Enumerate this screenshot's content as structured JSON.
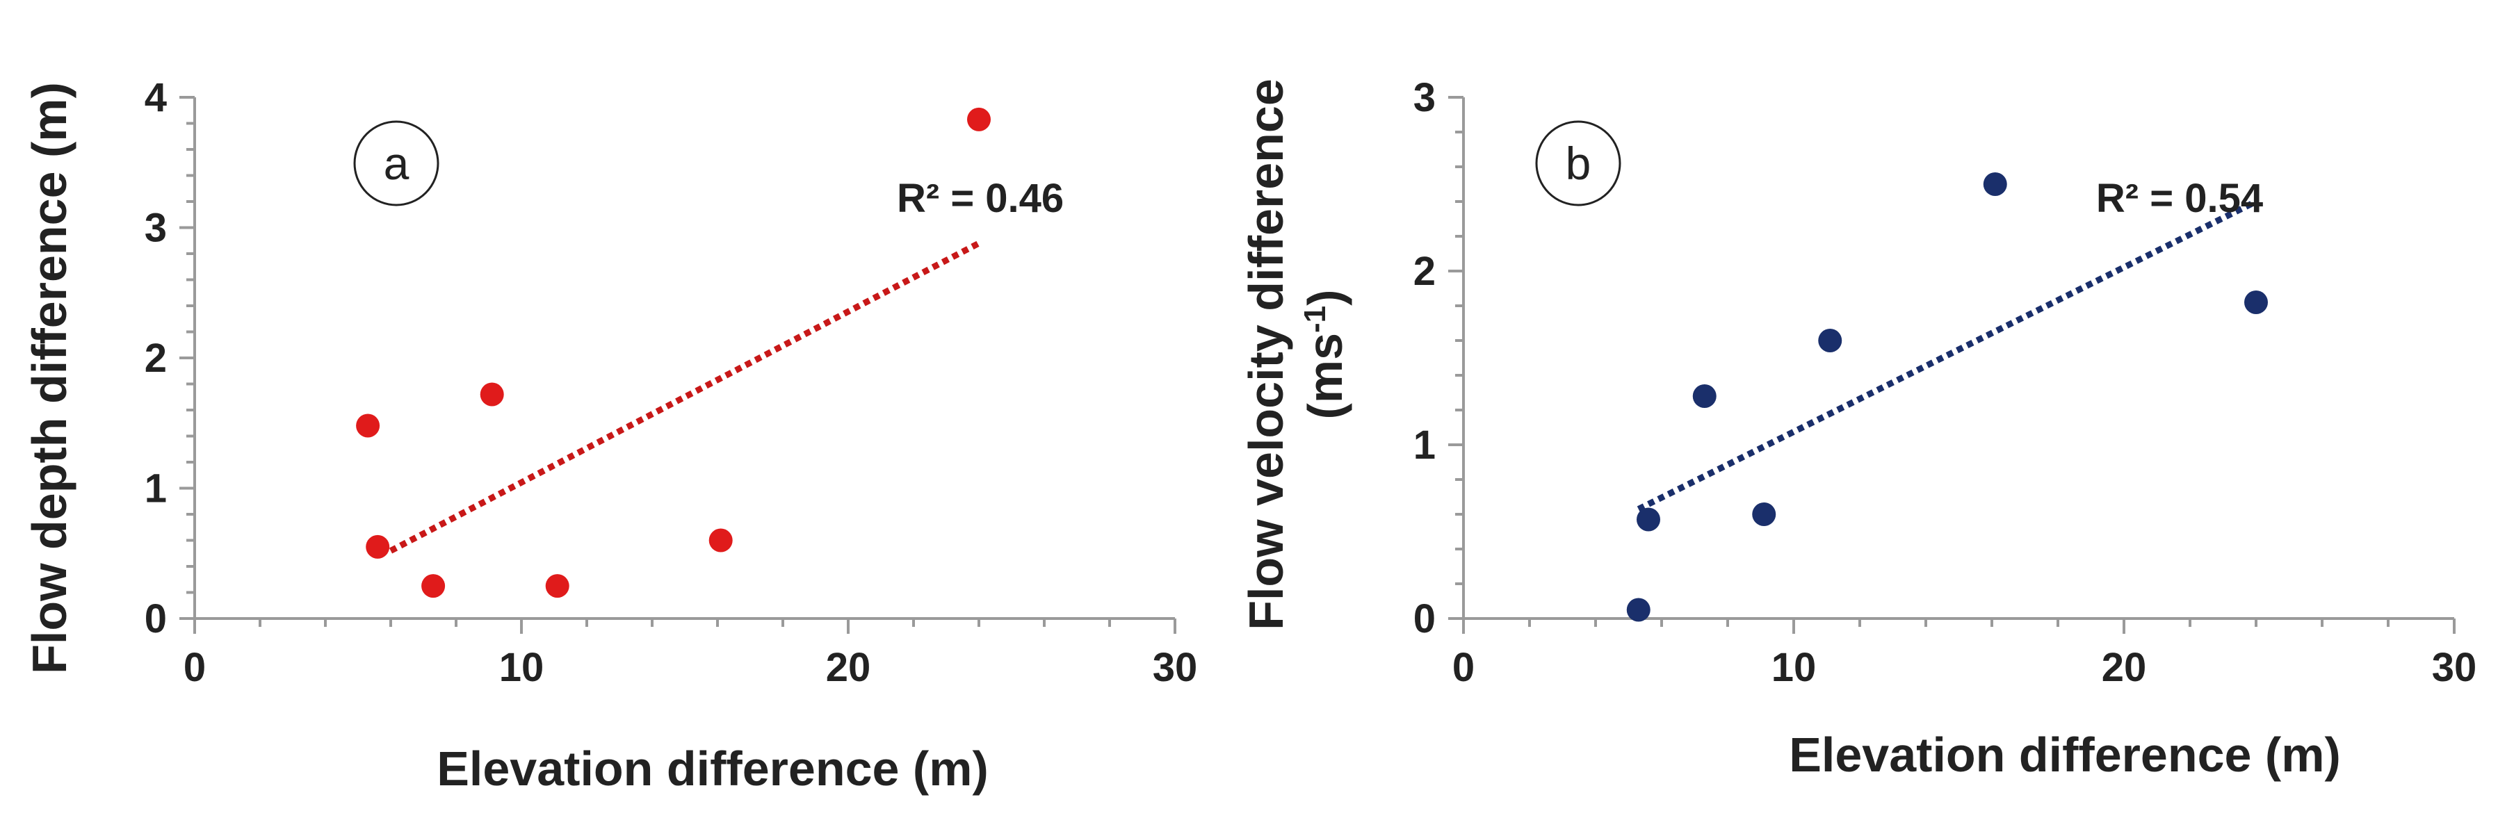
{
  "chart_data": [
    {
      "type": "scatter",
      "panel_label": "a",
      "xlabel": "Elevation difference (m)",
      "ylabel": "Flow depth difference (m)",
      "ylabel_unit": "",
      "xlim": [
        0,
        30
      ],
      "ylim": [
        0,
        4
      ],
      "x_ticks": [
        0,
        10,
        20,
        30
      ],
      "x_tick_labels": [
        "0",
        "10",
        "20",
        "30"
      ],
      "y_ticks": [
        0,
        1,
        2,
        3,
        4
      ],
      "y_tick_labels": [
        "0",
        "1",
        "2",
        "3",
        "4"
      ],
      "grid": false,
      "color": "#e01b1b",
      "trend_color": "#c81818",
      "r2_label": "R² = 0.46",
      "x": [
        5.3,
        5.6,
        7.3,
        9.1,
        11.1,
        16.1,
        24.0
      ],
      "y": [
        1.48,
        0.55,
        0.25,
        1.72,
        0.25,
        0.6,
        3.83
      ],
      "trendline": {
        "x": [
          6.0,
          24.0
        ],
        "y": [
          0.52,
          2.88
        ]
      }
    },
    {
      "type": "scatter",
      "panel_label": "b",
      "xlabel": "Elevation difference (m)",
      "ylabel": "Flow velocity difference",
      "ylabel_unit": "(ms-1)",
      "xlim": [
        0,
        30
      ],
      "ylim": [
        0,
        3
      ],
      "x_ticks": [
        0,
        10,
        20,
        30
      ],
      "x_tick_labels": [
        "0",
        "10",
        "20",
        "30"
      ],
      "y_ticks": [
        0,
        1,
        2,
        3
      ],
      "y_tick_labels": [
        "0",
        "1",
        "2",
        "3"
      ],
      "grid": false,
      "color": "#1a2f6b",
      "trend_color": "#1a2f6b",
      "r2_label": "R² = 0.54",
      "x": [
        5.3,
        5.6,
        7.3,
        9.1,
        11.1,
        16.1,
        24.0
      ],
      "y": [
        0.05,
        0.57,
        1.28,
        0.6,
        1.6,
        2.5,
        1.82
      ],
      "trendline": {
        "x": [
          5.3,
          24.0
        ],
        "y": [
          0.63,
          2.4
        ]
      }
    }
  ]
}
